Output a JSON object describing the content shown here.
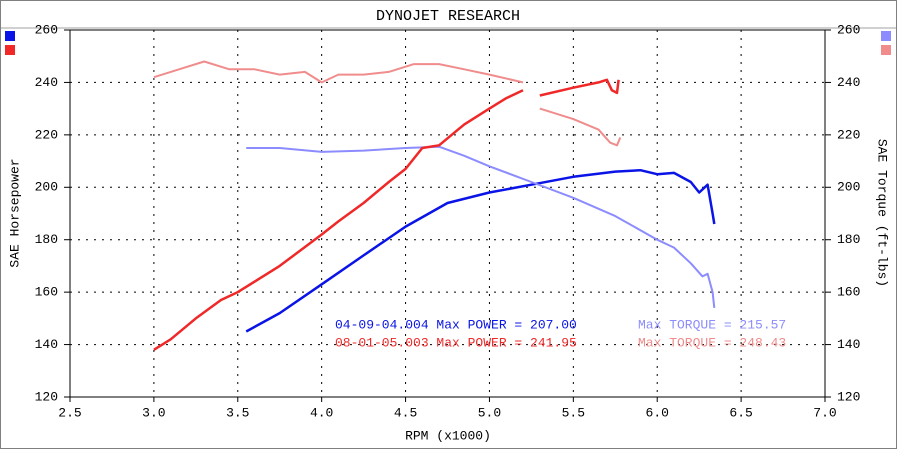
{
  "chart_data": {
    "type": "line",
    "title": "DYNOJET RESEARCH",
    "x_label": "RPM (x1000)",
    "y_label": "SAE Horsepower",
    "y2_label": "SAE Torque (ft-lbs)",
    "xlim": [
      2.5,
      7.0
    ],
    "xticks": [
      {
        "value": 2.5,
        "label": "2.5"
      },
      {
        "value": 3,
        "label": "3.0"
      },
      {
        "value": 3.5,
        "label": "3.5"
      },
      {
        "value": 4,
        "label": "4.0"
      },
      {
        "value": 4.5,
        "label": "4.5"
      },
      {
        "value": 5,
        "label": "5.0"
      },
      {
        "value": 5.5,
        "label": "5.5"
      },
      {
        "value": 6,
        "label": "6.0"
      },
      {
        "value": 6.5,
        "label": "6.5"
      },
      {
        "value": 7,
        "label": "7.0"
      }
    ],
    "ylim": [
      120,
      260
    ],
    "yticks": [
      120,
      140,
      160,
      180,
      200,
      220,
      240,
      260
    ],
    "y2lim": [
      120,
      260
    ],
    "y2ticks": [
      120,
      140,
      160,
      180,
      200,
      220,
      240,
      260
    ],
    "grid": true,
    "series": [
      {
        "color": "#0a14e6",
        "axis": "y",
        "x": [
          3.55,
          3.75,
          4.0,
          4.25,
          4.5,
          4.75,
          5.0,
          5.25,
          5.5,
          5.75,
          5.9,
          6.0,
          6.1,
          6.2,
          6.25,
          6.3,
          6.33,
          6.34
        ],
        "values": [
          145,
          152,
          163,
          174,
          185,
          194,
          198,
          201,
          204,
          206,
          206.5,
          205,
          205.5,
          202,
          198,
          201,
          190,
          186
        ]
      },
      {
        "color": "#8c8cff",
        "axis": "y2",
        "x": [
          3.55,
          3.75,
          4.0,
          4.25,
          4.5,
          4.7,
          4.85,
          5.0,
          5.25,
          5.5,
          5.75,
          6.0,
          6.1,
          6.2,
          6.27,
          6.3,
          6.33,
          6.34
        ],
        "values": [
          215,
          215,
          213.5,
          214,
          215,
          215.5,
          212,
          208,
          202,
          196,
          189,
          180,
          177,
          171,
          166,
          167,
          160,
          154
        ]
      },
      {
        "color": "#f02828",
        "axis": "y",
        "x": [
          3.0,
          3.1,
          3.25,
          3.4,
          3.5,
          3.75,
          4.0,
          4.1,
          4.25,
          4.4,
          4.5,
          4.6,
          4.7,
          4.85,
          5.0,
          5.1,
          5.2,
          5.25,
          5.3,
          5.5,
          5.65,
          5.7,
          5.73,
          5.76,
          5.77
        ],
        "values": [
          138,
          142,
          150,
          157,
          160,
          170,
          182,
          187,
          194,
          202,
          207,
          215,
          216,
          224,
          230,
          234,
          237,
          null,
          235,
          238,
          240,
          241,
          237,
          236,
          241
        ]
      },
      {
        "color": "#f08c8c",
        "axis": "y2",
        "x": [
          3.0,
          3.15,
          3.3,
          3.45,
          3.6,
          3.75,
          3.9,
          4.0,
          4.1,
          4.25,
          4.4,
          4.55,
          4.7,
          4.85,
          5.0,
          5.2,
          5.25,
          5.3,
          5.5,
          5.65,
          5.72,
          5.76,
          5.78
        ],
        "values": [
          242,
          245,
          248,
          245,
          245,
          243,
          244,
          240,
          243,
          243,
          244,
          247,
          247,
          245,
          243,
          240,
          null,
          230,
          226,
          222,
          217,
          216,
          219
        ]
      }
    ],
    "annotations": [
      {
        "text": "04-09-04.004 Max POWER = 207.00",
        "color": "#0a14e6"
      },
      {
        "text": "Max TORQUE = 215.57",
        "color": "#8c8cff"
      },
      {
        "text": "08-01-05.003 Max POWER = 241.95",
        "color": "#f02828"
      },
      {
        "text": "Max TORQUE = 248.43",
        "color": "#f08c8c"
      }
    ]
  }
}
